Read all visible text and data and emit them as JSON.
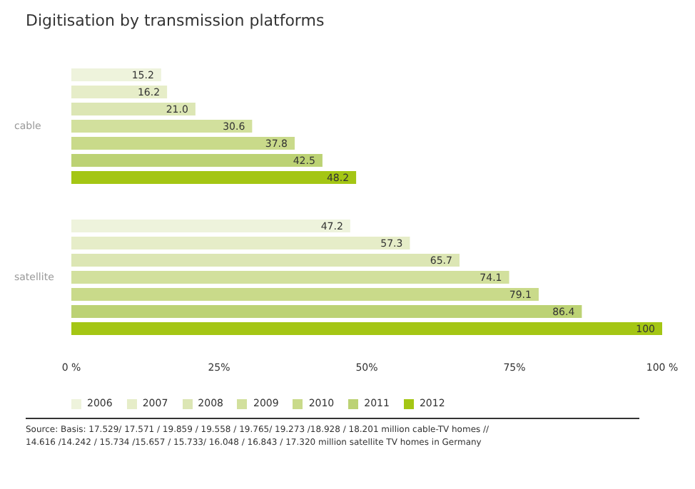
{
  "chart_data": {
    "type": "bar",
    "orientation": "horizontal",
    "title": "Digitisation by transmission platforms",
    "categories": [
      "cable",
      "satellite"
    ],
    "series": [
      {
        "name": "2006",
        "color": "#eef3dc",
        "values": [
          15.2,
          47.2
        ]
      },
      {
        "name": "2007",
        "color": "#e6edc8",
        "values": [
          16.2,
          57.3
        ]
      },
      {
        "name": "2008",
        "color": "#dce6b4",
        "values": [
          21.0,
          65.7
        ],
        "value_labels": [
          "21.0",
          "65.7"
        ]
      },
      {
        "name": "2009",
        "color": "#d2e09d",
        "values": [
          30.6,
          74.1
        ]
      },
      {
        "name": "2010",
        "color": "#c9da8a",
        "values": [
          37.8,
          79.1
        ]
      },
      {
        "name": "2011",
        "color": "#bcd274",
        "values": [
          42.5,
          86.4
        ]
      },
      {
        "name": "2012",
        "color": "#a4c614",
        "values": [
          48.2,
          100
        ]
      }
    ],
    "xlim": [
      0,
      100
    ],
    "xticks": [
      {
        "value": 0,
        "label": "0 %"
      },
      {
        "value": 25,
        "label": "25%"
      },
      {
        "value": 50,
        "label": "50%"
      },
      {
        "value": 75,
        "label": "75%"
      },
      {
        "value": 100,
        "label": "100 %"
      }
    ],
    "data_labels": true,
    "legend": "bottom left",
    "grid": false,
    "annotations": [
      "Source: Basis: 17.529/ 17.571 / 19.859 / 19.558 / 19.765/ 19.273 /18.928 / 18.201 million cable-TV homes //",
      "14.616 /14.242 / 15.734 /15.657 / 15.733/ 16.048 / 16.843 / 17.320 million satellite TV homes in Germany"
    ]
  }
}
